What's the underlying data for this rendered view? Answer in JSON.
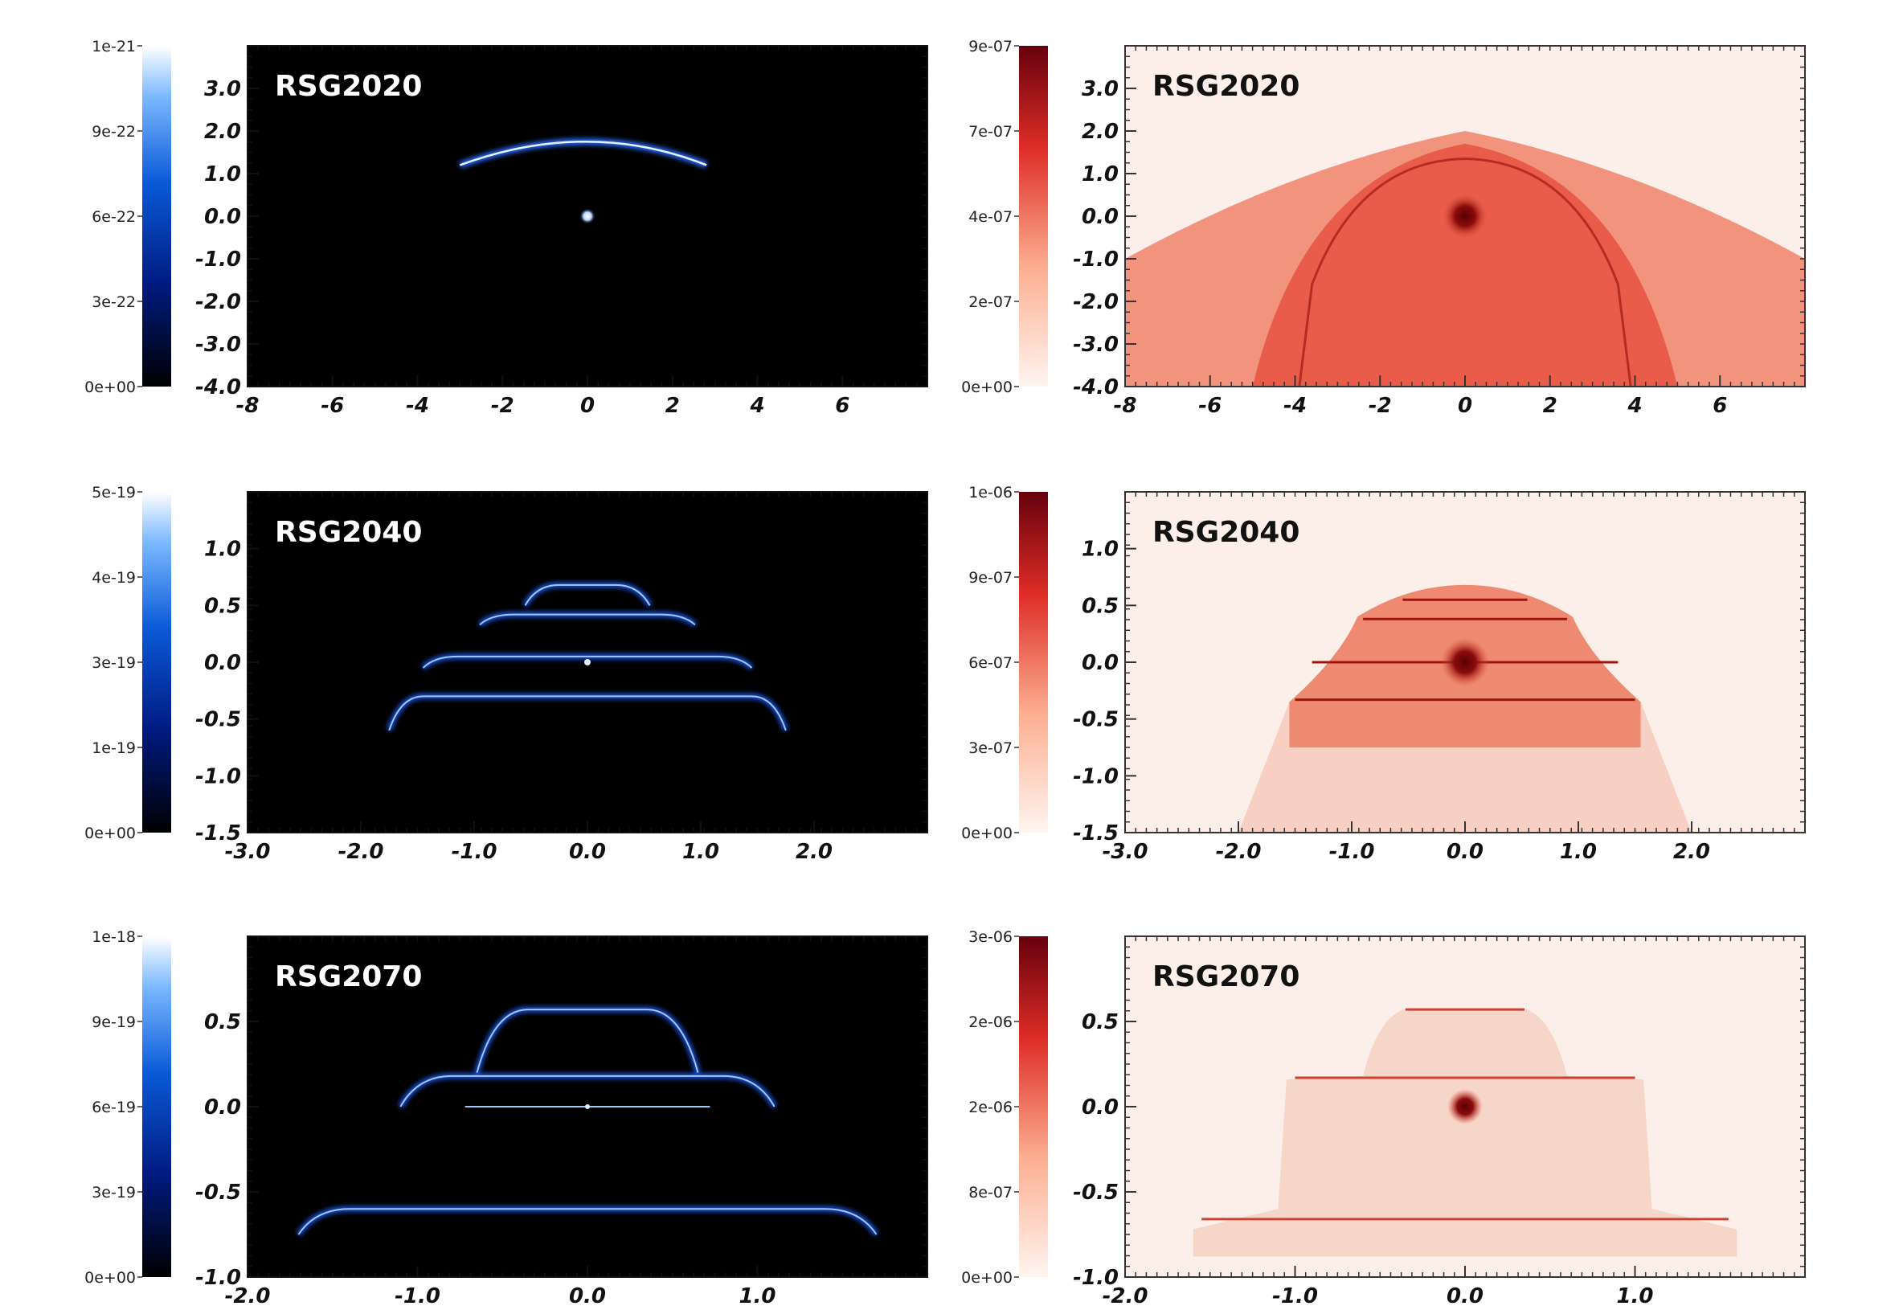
{
  "rows": [
    {
      "label": "RSG2020",
      "emission_colorbar": [
        "1e-21",
        "9e-22",
        "6e-22",
        "3e-22",
        "0e+00"
      ],
      "density_colorbar": [
        "9e-07",
        "7e-07",
        "4e-07",
        "2e-07",
        "0e+00"
      ],
      "y_ticks": [
        "3.0",
        "2.0",
        "1.0",
        "0.0",
        "-1.0",
        "-2.0",
        "-3.0",
        "-4.0"
      ],
      "x_ticks": [
        "-8",
        "-6",
        "-4",
        "-2",
        "0",
        "2",
        "4",
        "6"
      ],
      "ylim": [
        -4.0,
        4.0
      ],
      "xlim": [
        -8,
        8
      ]
    },
    {
      "label": "RSG2040",
      "emission_colorbar": [
        "5e-19",
        "4e-19",
        "3e-19",
        "1e-19",
        "0e+00"
      ],
      "density_colorbar": [
        "1e-06",
        "9e-07",
        "6e-07",
        "3e-07",
        "0e+00"
      ],
      "y_ticks": [
        "1.0",
        "0.5",
        "0.0",
        "-0.5",
        "-1.0",
        "-1.5"
      ],
      "x_ticks": [
        "-3.0",
        "-2.0",
        "-1.0",
        "0.0",
        "1.0",
        "2.0"
      ],
      "ylim": [
        -1.5,
        1.5
      ],
      "xlim": [
        -3.0,
        3.0
      ]
    },
    {
      "label": "RSG2070",
      "emission_colorbar": [
        "1e-18",
        "9e-19",
        "6e-19",
        "3e-19",
        "0e+00"
      ],
      "density_colorbar": [
        "3e-06",
        "2e-06",
        "2e-06",
        "8e-07",
        "0e+00"
      ],
      "y_ticks": [
        "0.5",
        "0.0",
        "-0.5",
        "-1.0"
      ],
      "x_ticks": [
        "-2.0",
        "-1.0",
        "0.0",
        "1.0"
      ],
      "ylim": [
        -1.0,
        1.0
      ],
      "xlim": [
        -2.0,
        2.0
      ]
    }
  ],
  "colors": {
    "emission_bg": "#000000",
    "emission_glow": "#9cc8ff",
    "density_bg": "#fcefe9",
    "density_dark": "#7a0a0a"
  }
}
